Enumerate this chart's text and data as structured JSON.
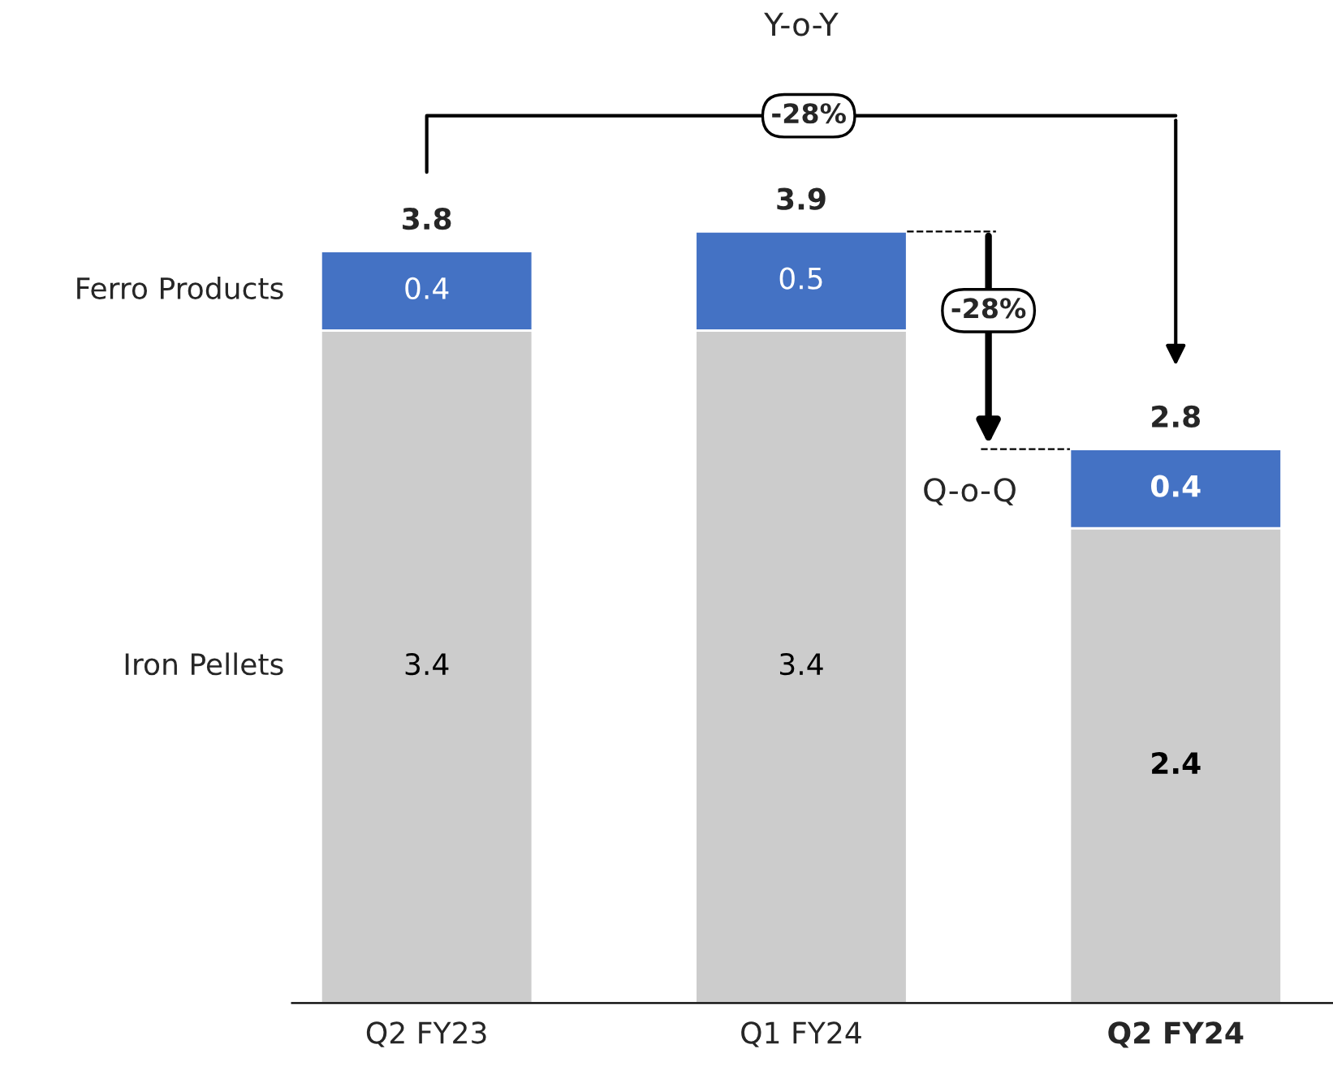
{
  "chart_data": {
    "type": "bar",
    "stacked": true,
    "data_labels": true,
    "categories": [
      "Q2 FY23",
      "Q1 FY24",
      "Q2 FY24"
    ],
    "series": [
      {
        "name": "Iron Pellets",
        "color": "#cccccc",
        "values": [
          3.4,
          3.4,
          2.4
        ]
      },
      {
        "name": "Ferro Products",
        "color": "#4472c4",
        "values": [
          0.4,
          0.5,
          0.4
        ]
      }
    ],
    "totals": [
      "3.8",
      "3.9",
      "2.8"
    ],
    "annotations": [
      "Y-o-Y",
      "-28%",
      "-28%",
      "Q-o-Q"
    ]
  }
}
